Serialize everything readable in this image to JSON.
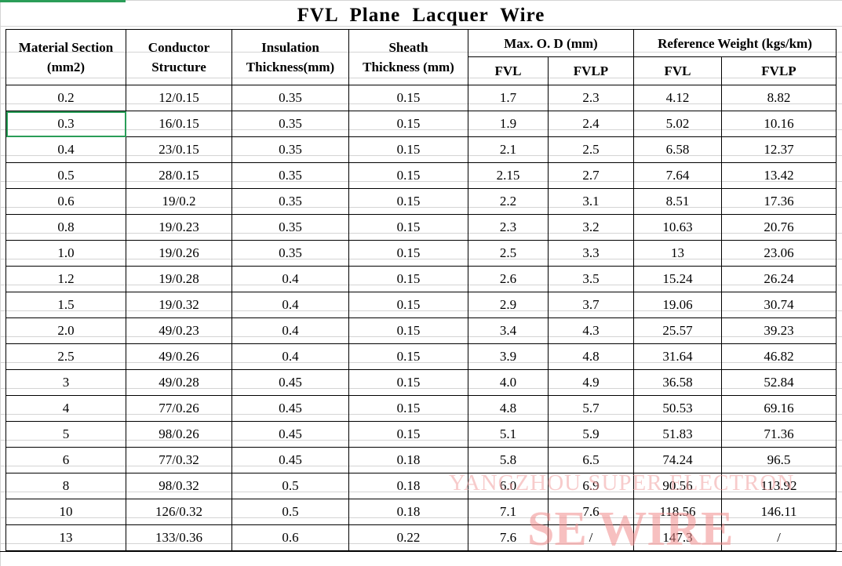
{
  "title": "FVL  Plane  Lacquer  Wire",
  "headers": {
    "material_section": [
      "Material Section",
      "(mm2)"
    ],
    "conductor_structure": [
      "Conductor",
      "Structure"
    ],
    "insulation_thickness": [
      "Insulation",
      "Thickness(mm)"
    ],
    "sheath_thickness": [
      "Sheath",
      "Thickness (mm)"
    ],
    "max_od": "Max. O. D (mm)",
    "ref_weight": "Reference Weight (kgs/km)",
    "fvl": "FVL",
    "fvlp": "FVLP"
  },
  "rows": [
    [
      "0.2",
      "12/0.15",
      "0.35",
      "0.15",
      "1.7",
      "2.3",
      "4.12",
      "8.82"
    ],
    [
      "0.3",
      "16/0.15",
      "0.35",
      "0.15",
      "1.9",
      "2.4",
      "5.02",
      "10.16"
    ],
    [
      "0.4",
      "23/0.15",
      "0.35",
      "0.15",
      "2.1",
      "2.5",
      "6.58",
      "12.37"
    ],
    [
      "0.5",
      "28/0.15",
      "0.35",
      "0.15",
      "2.15",
      "2.7",
      "7.64",
      "13.42"
    ],
    [
      "0.6",
      "19/0.2",
      "0.35",
      "0.15",
      "2.2",
      "3.1",
      "8.51",
      "17.36"
    ],
    [
      "0.8",
      "19/0.23",
      "0.35",
      "0.15",
      "2.3",
      "3.2",
      "10.63",
      "20.76"
    ],
    [
      "1.0",
      "19/0.26",
      "0.35",
      "0.15",
      "2.5",
      "3.3",
      "13",
      "23.06"
    ],
    [
      "1.2",
      "19/0.28",
      "0.4",
      "0.15",
      "2.6",
      "3.5",
      "15.24",
      "26.24"
    ],
    [
      "1.5",
      "19/0.32",
      "0.4",
      "0.15",
      "2.9",
      "3.7",
      "19.06",
      "30.74"
    ],
    [
      "2.0",
      "49/0.23",
      "0.4",
      "0.15",
      "3.4",
      "4.3",
      "25.57",
      "39.23"
    ],
    [
      "2.5",
      "49/0.26",
      "0.4",
      "0.15",
      "3.9",
      "4.8",
      "31.64",
      "46.82"
    ],
    [
      "3",
      "49/0.28",
      "0.45",
      "0.15",
      "4.0",
      "4.9",
      "36.58",
      "52.84"
    ],
    [
      "4",
      "77/0.26",
      "0.45",
      "0.15",
      "4.8",
      "5.7",
      "50.53",
      "69.16"
    ],
    [
      "5",
      "98/0.26",
      "0.45",
      "0.15",
      "5.1",
      "5.9",
      "51.83",
      "71.36"
    ],
    [
      "6",
      "77/0.32",
      "0.45",
      "0.18",
      "5.8",
      "6.5",
      "74.24",
      "96.5"
    ],
    [
      "8",
      "98/0.32",
      "0.5",
      "0.18",
      "6.0",
      "6.9",
      "90.56",
      "113.92"
    ],
    [
      "10",
      "126/0.32",
      "0.5",
      "0.18",
      "7.1",
      "7.6",
      "118.56",
      "146.11"
    ],
    [
      "13",
      "133/0.36",
      "0.6",
      "0.22",
      "7.6",
      "/",
      "147.3",
      "/"
    ]
  ],
  "watermark": {
    "line1": "YANGZHOU SUPER ELECTRON",
    "line2": "SE WIRE"
  },
  "selection": {
    "row": 1,
    "col": 0,
    "color": "#2a9d58"
  }
}
